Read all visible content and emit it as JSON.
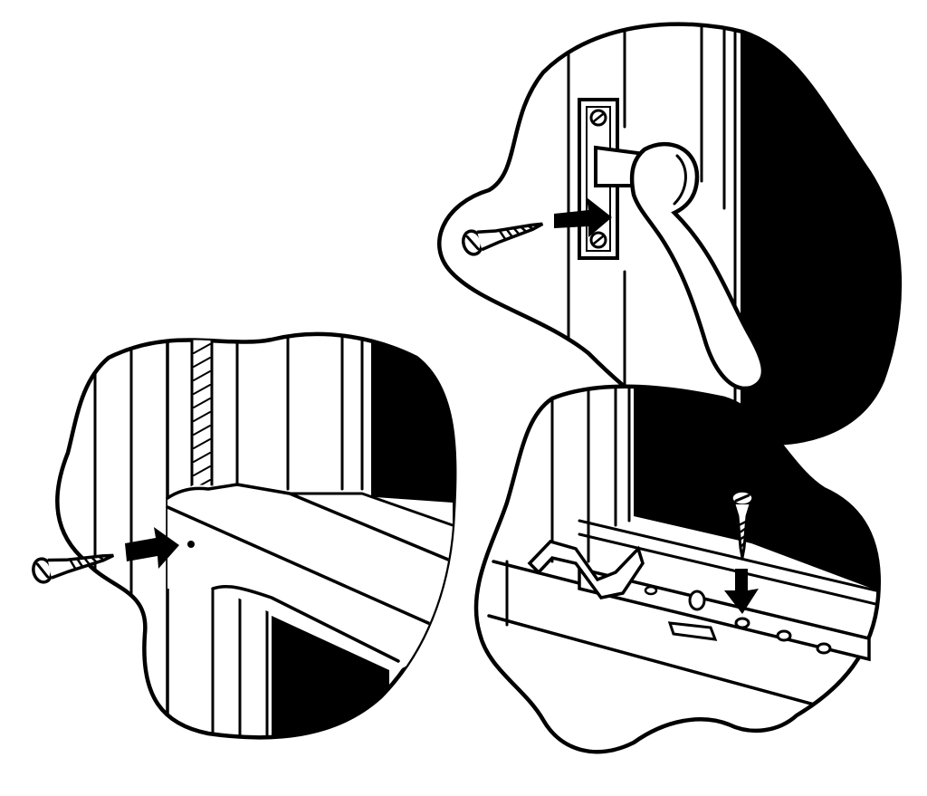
{
  "illustration": {
    "panels": [
      {
        "name": "handle-latch-panel",
        "icon": "screw-icon"
      },
      {
        "name": "sash-frame-panel",
        "icon": "screw-icon"
      },
      {
        "name": "window-sill-panel",
        "icon": "screw-icon"
      }
    ],
    "colors": {
      "ink": "#000000",
      "paper": "#ffffff"
    }
  }
}
